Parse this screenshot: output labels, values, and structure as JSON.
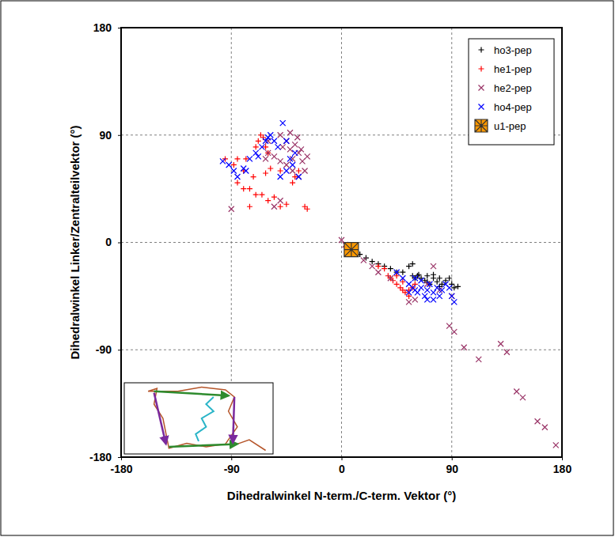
{
  "chart_data": {
    "type": "scatter",
    "x_label": "Dihedralwinkel N-term./C-term. Vektor (°)",
    "y_label": "Dihedralwinkel Linker/Zentralteilvektor (°)",
    "xlim": [
      -180,
      180
    ],
    "xticks": [
      -180,
      -90,
      0,
      90,
      180
    ],
    "ylim": [
      -180,
      180
    ],
    "yticks": [
      -180,
      -90,
      0,
      90,
      180
    ],
    "grid": true,
    "legend": "top-right",
    "series": [
      {
        "name": "ho3-pep",
        "color": "#000000",
        "marker": "plus",
        "x": [
          15,
          20,
          25,
          30,
          35,
          40,
          45,
          50,
          55,
          58,
          60,
          62,
          65,
          68,
          70,
          72,
          75,
          78,
          80,
          82,
          85,
          88,
          90,
          92,
          95,
          58,
          63,
          70,
          75,
          80
        ],
        "values": [
          -10,
          -13,
          -16,
          -18,
          -20,
          -22,
          -25,
          -25,
          -20,
          -28,
          -30,
          -28,
          -30,
          -32,
          -28,
          -35,
          -30,
          -33,
          -30,
          -35,
          -32,
          -30,
          -35,
          -38,
          -37,
          -18,
          -27,
          -33,
          -27,
          -37
        ]
      },
      {
        "name": "he1-pep",
        "color": "#ff0000",
        "marker": "plus",
        "x": [
          -95,
          -88,
          -85,
          -80,
          -78,
          -75,
          -72,
          -70,
          -68,
          -66,
          -64,
          -62,
          -60,
          -65,
          -60,
          -55,
          -50,
          -45,
          -40,
          -38,
          -35,
          -30,
          -28,
          -75,
          -70,
          -62,
          -58,
          -50,
          -85,
          -80,
          35,
          38,
          40,
          42,
          45,
          48,
          50,
          52,
          55,
          58,
          60,
          45,
          50,
          55,
          30
        ],
        "values": [
          70,
          65,
          50,
          60,
          70,
          45,
          55,
          80,
          85,
          90,
          88,
          80,
          75,
          40,
          35,
          38,
          30,
          32,
          50,
          55,
          60,
          30,
          28,
          30,
          40,
          58,
          62,
          60,
          70,
          45,
          -22,
          -28,
          -30,
          -32,
          -35,
          -38,
          -40,
          -42,
          -40,
          -38,
          -35,
          -28,
          -33,
          -45,
          -20
        ]
      },
      {
        "name": "he2-pep",
        "color": "#993366",
        "marker": "cross",
        "x": [
          -90,
          -55,
          -50,
          -48,
          -45,
          -42,
          -40,
          -38,
          -35,
          -32,
          -30,
          -45,
          -50,
          -55,
          -60,
          -40,
          -36,
          -33,
          -28,
          -42,
          -50,
          -60,
          -62,
          -35,
          0,
          3,
          10,
          18,
          25,
          30,
          40,
          55,
          60,
          70,
          75,
          80,
          90,
          88,
          92,
          100,
          112,
          130,
          135,
          143,
          148,
          160,
          166,
          175
        ],
        "values": [
          28,
          30,
          35,
          80,
          85,
          78,
          70,
          82,
          75,
          68,
          60,
          65,
          68,
          72,
          75,
          60,
          88,
          78,
          72,
          92,
          90,
          85,
          70,
          55,
          2,
          -2,
          -8,
          -15,
          -20,
          -25,
          -30,
          -50,
          -48,
          -35,
          -20,
          -40,
          -45,
          -70,
          -75,
          -88,
          -98,
          -85,
          -92,
          -125,
          -130,
          -150,
          -155,
          -170
        ]
      },
      {
        "name": "ho4-pep",
        "color": "#0000ff",
        "marker": "cross",
        "x": [
          -97,
          -92,
          -88,
          -85,
          -80,
          -75,
          -70,
          -65,
          -60,
          -58,
          -55,
          -48,
          -45,
          -50,
          -45,
          -40,
          -35,
          -38,
          -42,
          -52,
          -62,
          -68,
          -78,
          45,
          50,
          55,
          58,
          60,
          62,
          65,
          68,
          70,
          72,
          75,
          78,
          80,
          82,
          85,
          88,
          90,
          92,
          60,
          65,
          70,
          75,
          55
        ],
        "values": [
          68,
          65,
          60,
          55,
          62,
          70,
          75,
          80,
          88,
          90,
          85,
          100,
          85,
          55,
          60,
          65,
          55,
          75,
          70,
          80,
          85,
          72,
          60,
          -25,
          -30,
          -35,
          -38,
          -40,
          -42,
          -38,
          -45,
          -40,
          -35,
          -42,
          -38,
          -45,
          -40,
          -35,
          -38,
          -45,
          -50,
          -30,
          -32,
          -48,
          -48,
          -42
        ]
      },
      {
        "name": "u1-pep",
        "color": "#ff9900",
        "marker": "square",
        "x": [
          8
        ],
        "values": [
          -6
        ]
      }
    ]
  }
}
